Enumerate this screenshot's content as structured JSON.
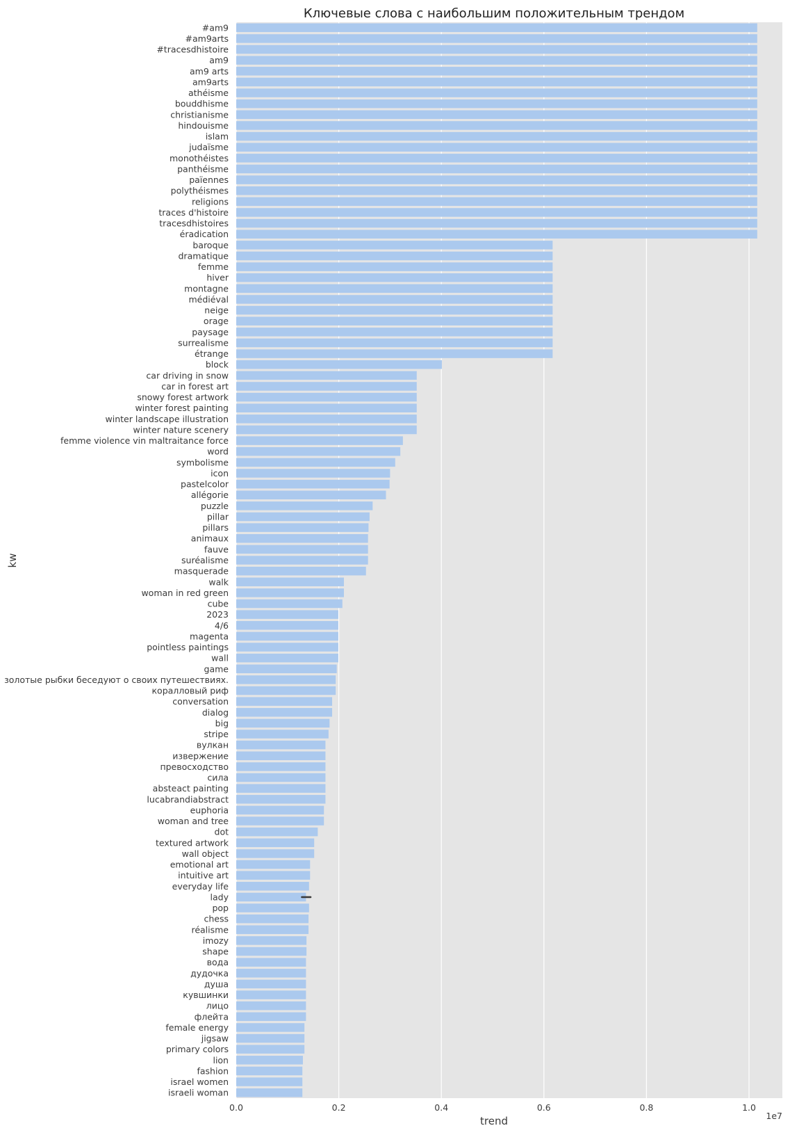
{
  "chart_data": {
    "type": "bar",
    "orientation": "horizontal",
    "title": "Ключевые слова с наибольшим положительным трендом",
    "xlabel": "trend",
    "ylabel": "kw",
    "x_offset_label": "1e7",
    "xlim": [
      0,
      1.065
    ],
    "xticks": [
      0.0,
      0.2,
      0.4,
      0.6,
      0.8,
      1.0
    ],
    "xtick_labels": [
      "0.0",
      "0.2",
      "0.4",
      "0.6",
      "0.8",
      "1.0"
    ],
    "grid": true,
    "bar_color": "#abc9ee",
    "background_color": "#e5e5e5",
    "categories": [
      "#am9",
      "#am9arts",
      "#tracesdhistoire",
      "am9",
      "am9 arts",
      "am9arts",
      "athéisme",
      "bouddhisme",
      "christianisme",
      "hindouisme",
      "islam",
      "judaïsme",
      "monothéistes",
      "panthéisme",
      "païennes",
      "polythéismes",
      "religions",
      "traces d'histoire",
      "tracesdhistoires",
      "éradication",
      "baroque",
      "dramatique",
      "femme",
      "hiver",
      "montagne",
      "médiéval",
      "neige",
      "orage",
      "paysage",
      "surrealisme",
      "étrange",
      "block",
      "car driving in snow",
      "car in forest art",
      "snowy forest artwork",
      "winter forest painting",
      "winter landscape illustration",
      "winter nature scenery",
      "femme violence vin maltraitance force",
      "word",
      "symbolisme",
      "icon",
      "pastelcolor",
      "allégorie",
      "puzzle",
      "pillar",
      "pillars",
      "animaux",
      "fauve",
      "suréalisme",
      "masquerade",
      "walk",
      "woman in red green",
      "cube",
      "2023",
      "4/6",
      "magenta",
      "pointless paintings",
      "wall",
      "game",
      "золотые рыбки беседуют о своих путешествиях.",
      "коралловый риф",
      "conversation",
      "dialog",
      "big",
      "stripe",
      "вулкан",
      "извержение",
      "превосходство",
      "сила",
      "absteact painting",
      "lucabrandiabstract",
      "euphoria",
      "woman and tree",
      "dot",
      "textured artwork",
      "wall object",
      "emotional art",
      "intuitive art",
      "everyday life",
      "lady",
      "pop",
      "chess",
      "réalisme",
      "imozy",
      "shape",
      "вода",
      "дудочка",
      "душа",
      "кувшинки",
      "лицо",
      "флейта",
      "female energy",
      "jigsaw",
      "primary colors",
      "lion",
      "fashion",
      "israel women",
      "israeli woman"
    ],
    "values": [
      1.016,
      1.016,
      1.016,
      1.016,
      1.016,
      1.016,
      1.016,
      1.016,
      1.016,
      1.016,
      1.016,
      1.016,
      1.016,
      1.016,
      1.016,
      1.016,
      1.016,
      1.016,
      1.016,
      1.016,
      0.617,
      0.617,
      0.617,
      0.617,
      0.617,
      0.617,
      0.617,
      0.617,
      0.617,
      0.617,
      0.617,
      0.401,
      0.352,
      0.352,
      0.352,
      0.352,
      0.352,
      0.352,
      0.325,
      0.32,
      0.31,
      0.3,
      0.299,
      0.292,
      0.266,
      0.26,
      0.258,
      0.257,
      0.257,
      0.257,
      0.253,
      0.21,
      0.21,
      0.207,
      0.199,
      0.199,
      0.199,
      0.199,
      0.199,
      0.196,
      0.194,
      0.194,
      0.187,
      0.187,
      0.182,
      0.18,
      0.174,
      0.174,
      0.174,
      0.174,
      0.174,
      0.174,
      0.171,
      0.171,
      0.159,
      0.152,
      0.152,
      0.144,
      0.144,
      0.142,
      0.136,
      0.142,
      0.141,
      0.141,
      0.137,
      0.137,
      0.136,
      0.136,
      0.136,
      0.136,
      0.136,
      0.136,
      0.133,
      0.133,
      0.133,
      0.13,
      0.129,
      0.129,
      0.129
    ],
    "error_bars": [
      {
        "category": "lady",
        "low": 0.128,
        "high": 0.145
      }
    ]
  }
}
